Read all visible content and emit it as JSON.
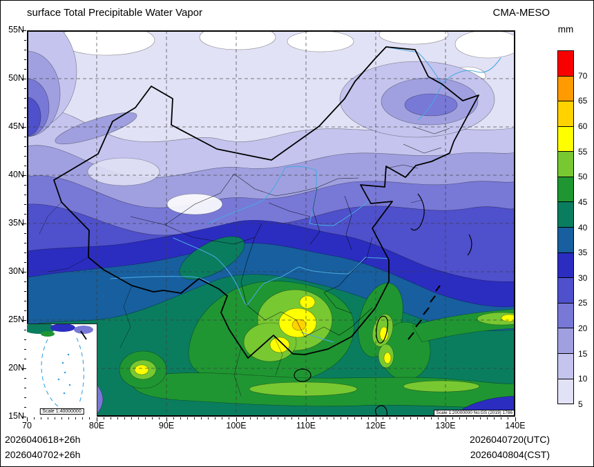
{
  "title": "surface Total Precipitable Water Vapor",
  "model_label": "CMA-MESO",
  "colorbar": {
    "unit": "mm",
    "labels_top_to_bottom": [
      "70",
      "65",
      "60",
      "55",
      "50",
      "45",
      "40",
      "35",
      "30",
      "25",
      "20",
      "15",
      "10",
      "5"
    ],
    "colors_top_to_bottom": [
      "#f80000",
      "#ff9b00",
      "#ffd200",
      "#ffff00",
      "#78c832",
      "#1f9632",
      "#0a7d5f",
      "#175f9e",
      "#2b2dc0",
      "#4f50cb",
      "#7878d7",
      "#a0a0e0",
      "#c4c4ee",
      "#e2e2f6"
    ]
  },
  "axes": {
    "x_ticks": [
      "70",
      "80E",
      "90E",
      "100E",
      "110E",
      "120E",
      "130E",
      "140E"
    ],
    "y_ticks": [
      "55N",
      "50N",
      "45N",
      "40N",
      "35N",
      "30N",
      "25N",
      "20N",
      "15N"
    ]
  },
  "map_annotations": {
    "scale_box": "Scale 1:20000000 No:GS (2019) 1786",
    "inset_scale_box": "Scale 1:40000000"
  },
  "footer": {
    "left_line1": "2026040618+26h",
    "left_line2": "2026040702+26h",
    "right_line1": "2026040720(UTC)",
    "right_line2": "2026040804(CST)"
  },
  "chart_data": {
    "type": "heatmap",
    "title": "surface Total Precipitable Water Vapor",
    "unit": "mm",
    "model": "CMA-MESO",
    "contour_levels_mm": [
      5,
      10,
      15,
      20,
      25,
      30,
      35,
      40,
      45,
      50,
      55,
      60,
      65,
      70
    ],
    "level_colors_low_to_high": [
      "#e2e2f6",
      "#c4c4ee",
      "#a0a0e0",
      "#7878d7",
      "#4f50cb",
      "#2b2dc0",
      "#175f9e",
      "#0a7d5f",
      "#1f9632",
      "#78c832",
      "#ffff00",
      "#ffd200",
      "#ff9b00",
      "#f80000"
    ],
    "lon_range_deg_e": [
      70,
      140
    ],
    "lat_range_deg_n": [
      15,
      55
    ],
    "grid_spacing": {
      "lon_deg": 10,
      "lat_deg": 5
    },
    "init_time": "2026040618+26h",
    "valid_time_utc": "2026040720(UTC)",
    "valid_time_cst": "2026040804(CST)"
  }
}
